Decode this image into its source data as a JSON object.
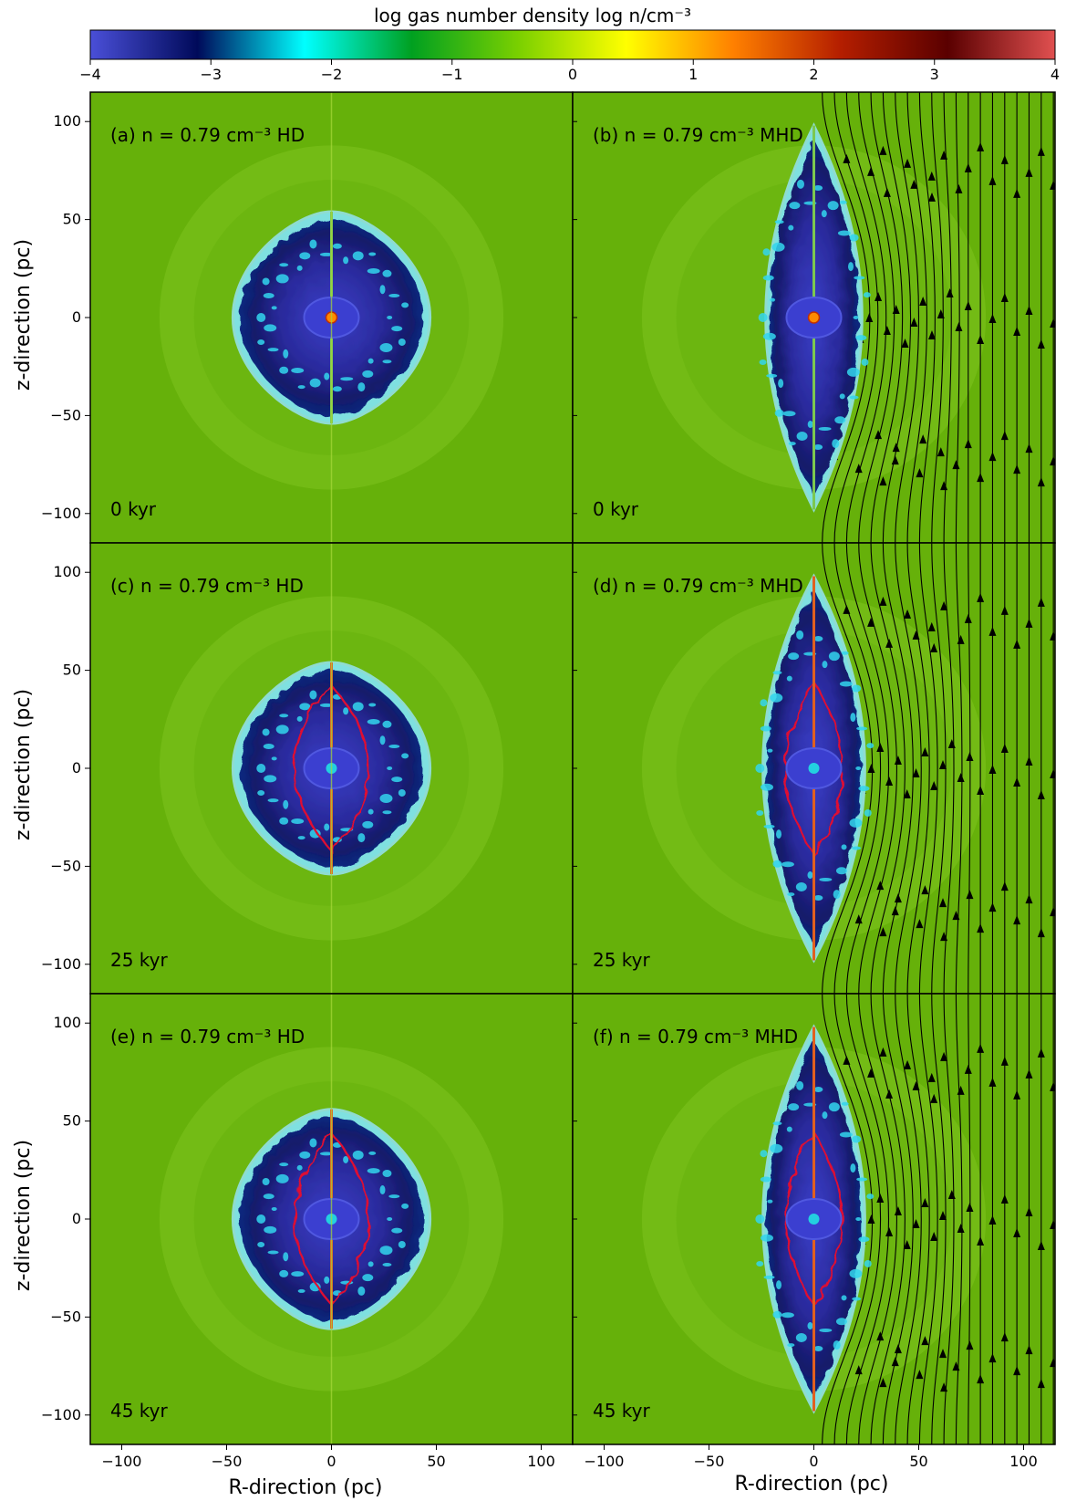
{
  "colorbar": {
    "title": "log gas number density log n/cm⁻³",
    "ticks": [
      -4,
      -3,
      -2,
      -1,
      0,
      1,
      2,
      3,
      4
    ],
    "tick_labels": [
      "−4",
      "−3",
      "−2",
      "−1",
      "0",
      "1",
      "2",
      "3",
      "4"
    ],
    "colors": [
      "#4a4fd8",
      "#000a5a",
      "#00ffff",
      "#00a020",
      "#7bd000",
      "#ffff00",
      "#ff8000",
      "#b41e00",
      "#5a0000",
      "#e05050"
    ]
  },
  "axes": {
    "xlabel": "R-direction (pc)",
    "ylabel": "z-direction (pc)",
    "xlim": [
      -115,
      115
    ],
    "ylim": [
      -115,
      115
    ],
    "xticks": [
      -100,
      -50,
      0,
      50,
      100
    ],
    "xtick_labels": [
      "−100",
      "−50",
      "0",
      "50",
      "100"
    ],
    "yticks": [
      100,
      50,
      0,
      -50,
      -100
    ],
    "ytick_labels": [
      "100",
      "50",
      "0",
      "−50",
      "−100"
    ]
  },
  "chart_data": [
    {
      "type": "heatmap",
      "panel": "(a)",
      "label": "(a) n = 0.79 cm⁻³ HD",
      "time": "0 kyr",
      "model": "HD",
      "shell_half_width": 47,
      "shell_half_height": 54,
      "ring_radius": 82,
      "red_contour": false
    },
    {
      "type": "heatmap",
      "panel": "(b)",
      "label": "(b) n = 0.79 cm⁻³ MHD",
      "time": "0 kyr",
      "model": "MHD",
      "shell_half_width": 34,
      "shell_half_height": 98,
      "ring_radius": 82,
      "red_contour": false
    },
    {
      "type": "heatmap",
      "panel": "(c)",
      "label": "(c) n = 0.79 cm⁻³ HD",
      "time": "25 kyr",
      "model": "HD",
      "shell_half_width": 47,
      "shell_half_height": 54,
      "ring_radius": 82,
      "red_contour": true
    },
    {
      "type": "heatmap",
      "panel": "(d)",
      "label": "(d) n = 0.79 cm⁻³ MHD",
      "time": "25 kyr",
      "model": "MHD",
      "shell_half_width": 36,
      "shell_half_height": 98,
      "ring_radius": 82,
      "red_contour": true
    },
    {
      "type": "heatmap",
      "panel": "(e)",
      "label": "(e) n = 0.79 cm⁻³ HD",
      "time": "45 kyr",
      "model": "HD",
      "shell_half_width": 47,
      "shell_half_height": 56,
      "ring_radius": 82,
      "red_contour": true
    },
    {
      "type": "heatmap",
      "panel": "(f)",
      "label": "(f) n = 0.79 cm⁻³ MHD",
      "time": "45 kyr",
      "model": "MHD",
      "shell_half_width": 36,
      "shell_half_height": 98,
      "ring_radius": 82,
      "red_contour": true
    }
  ]
}
